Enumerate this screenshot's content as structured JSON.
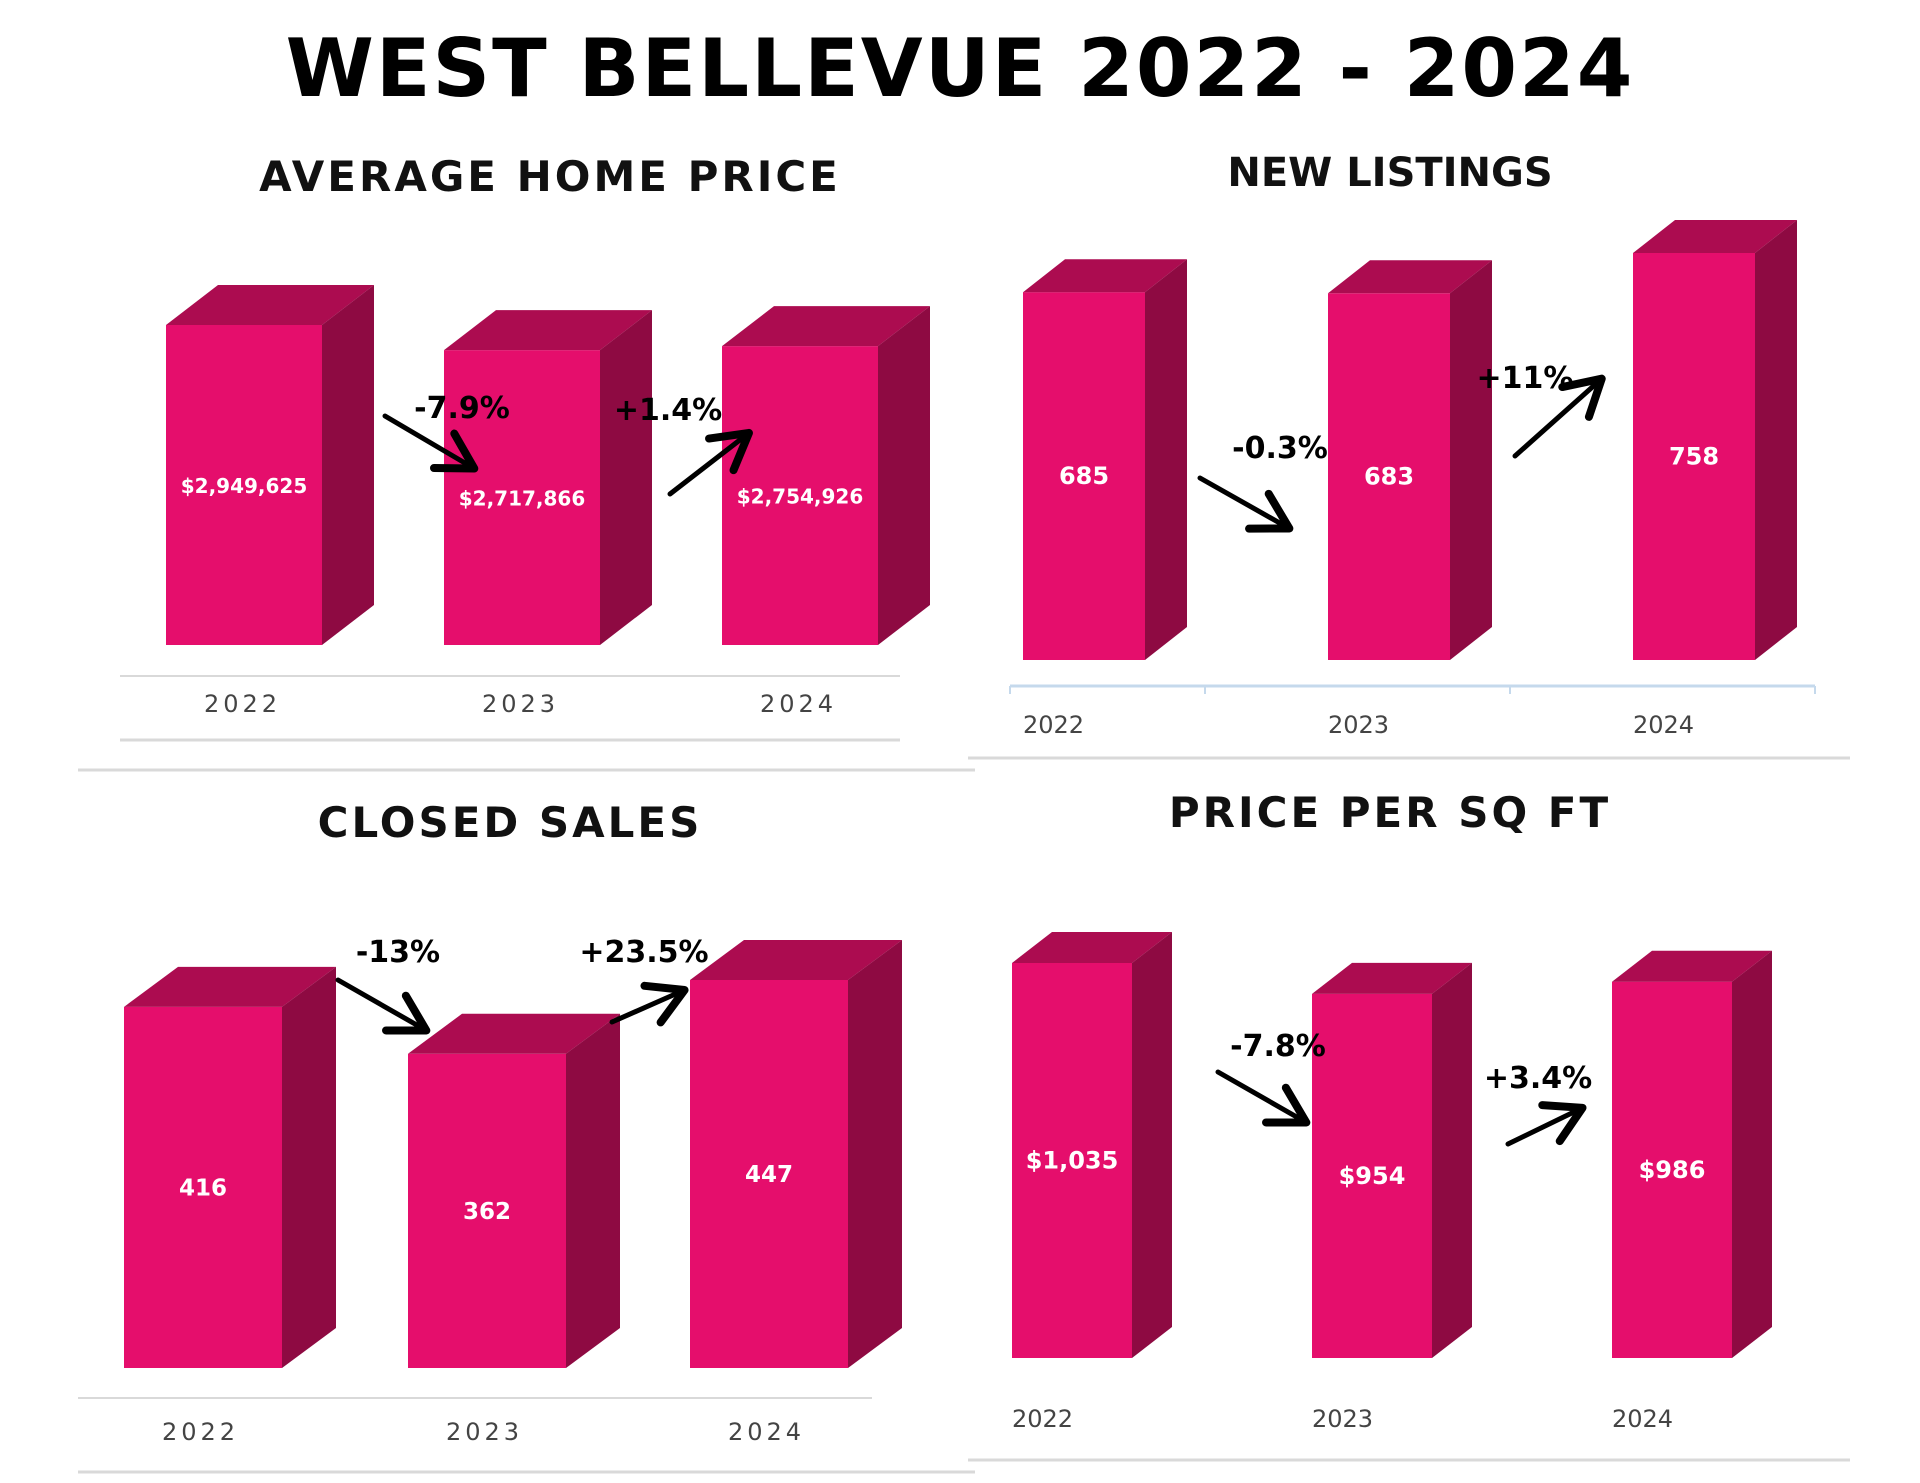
{
  "title": "WEST BELLEVUE 2022 - 2024",
  "colors": {
    "front": "#e50e6c",
    "top": "#ac0c50",
    "side": "#8e0a42",
    "value_text": "#ffffff",
    "arrow": "#000000",
    "axis_line": "#d9d9d9",
    "axis_line_light": "#c5d9ec"
  },
  "chart_data": [
    {
      "type": "bar",
      "title": "AVERAGE HOME PRICE",
      "categories": [
        "2022",
        "2023",
        "2024"
      ],
      "values": [
        2949625,
        2717866,
        2754926
      ],
      "value_labels": [
        "$2,949,625",
        "$2,717,866",
        "$2,754,926"
      ],
      "changes": [
        "-7.9%",
        "+1.4%"
      ],
      "change_directions": [
        "down",
        "up"
      ],
      "ylim": [
        0,
        2949625
      ]
    },
    {
      "type": "bar",
      "title": "NEW LISTINGS",
      "categories": [
        "2022",
        "2023",
        "2024"
      ],
      "values": [
        685,
        683,
        758
      ],
      "value_labels": [
        "685",
        "683",
        "758"
      ],
      "changes": [
        "-0.3%",
        "+11%"
      ],
      "change_directions": [
        "down",
        "up"
      ],
      "ylim": [
        0,
        758
      ]
    },
    {
      "type": "bar",
      "title": "CLOSED SALES",
      "categories": [
        "2022",
        "2023",
        "2024"
      ],
      "values": [
        416,
        362,
        447
      ],
      "value_labels": [
        "416",
        "362",
        "447"
      ],
      "changes": [
        "-13%",
        "+23.5%"
      ],
      "change_directions": [
        "down",
        "up"
      ],
      "ylim": [
        0,
        447
      ]
    },
    {
      "type": "bar",
      "title": "PRICE PER SQ FT",
      "categories": [
        "2022",
        "2023",
        "2024"
      ],
      "values": [
        1035,
        954,
        986
      ],
      "value_labels": [
        "$1,035",
        "$954",
        "$986"
      ],
      "changes": [
        "-7.8%",
        "+3.4%"
      ],
      "change_directions": [
        "down",
        "up"
      ],
      "ylim": [
        0,
        1035
      ]
    }
  ]
}
